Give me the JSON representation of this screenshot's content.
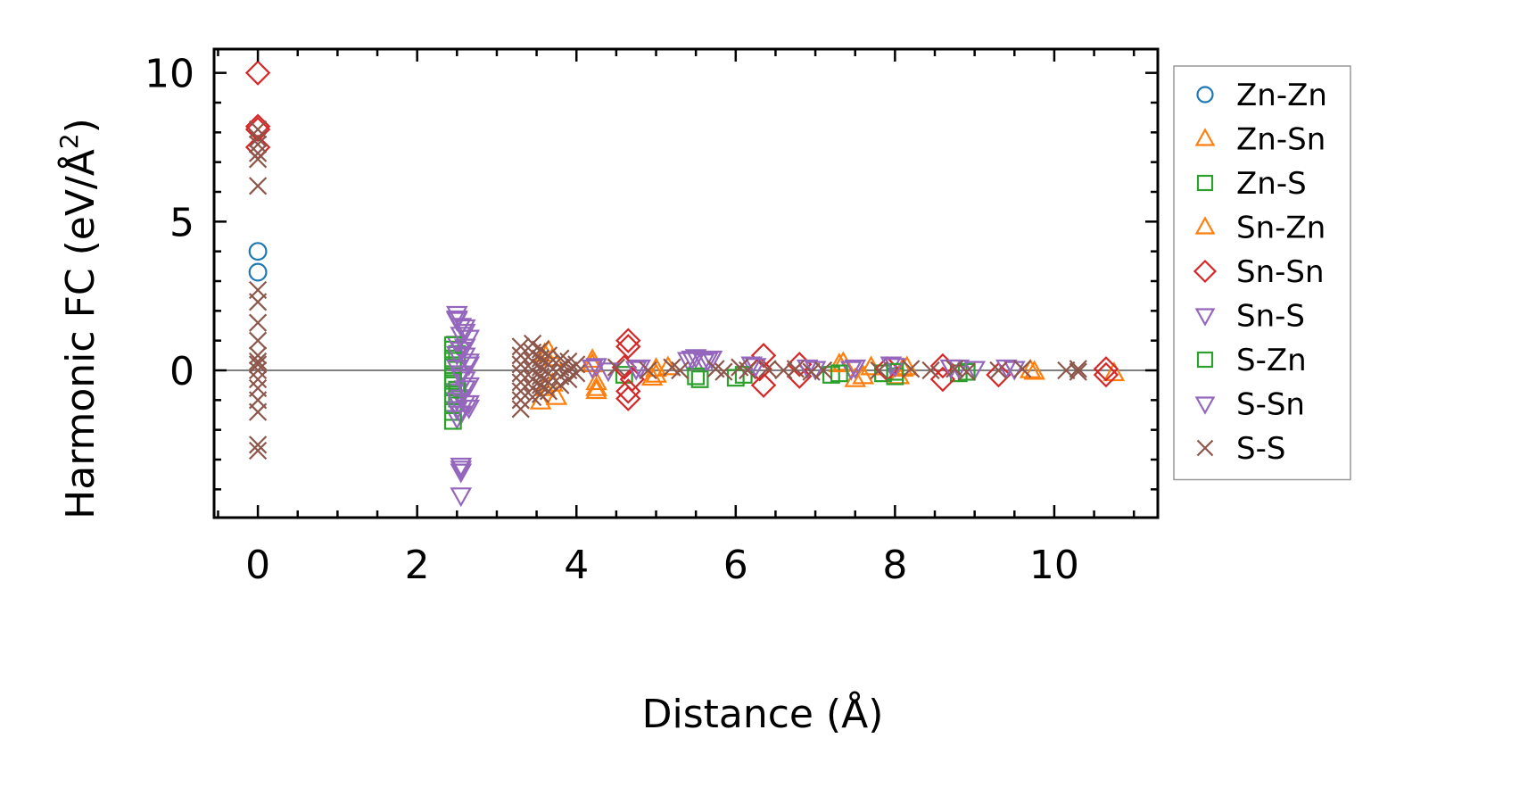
{
  "chart_data": {
    "type": "scatter",
    "xlabel": "Distance (Å)",
    "ylabel_main": "Harmonic FC (eV/Å",
    "ylabel_sup": "2",
    "ylabel_close": ")",
    "xlim": [
      -0.55,
      11.3
    ],
    "ylim": [
      -4.95,
      10.8
    ],
    "x_ticks": [
      0,
      2,
      4,
      6,
      8,
      10
    ],
    "x_tick_labels": [
      "0",
      "2",
      "4",
      "6",
      "8",
      "10"
    ],
    "y_ticks": [
      0,
      5,
      10
    ],
    "y_tick_labels": [
      "0",
      "5",
      "10"
    ],
    "x_minor_step": 0.5,
    "y_minor_step": 1,
    "zero_line": true,
    "grid": false,
    "legend_position": "outside-right",
    "series": [
      {
        "name": "Zn-Zn",
        "color": "#1f77b4",
        "marker": "circle",
        "points": [
          [
            0,
            4.0
          ],
          [
            0,
            3.3
          ]
        ]
      },
      {
        "name": "Zn-Sn",
        "color": "#ff7f0e",
        "marker": "triangle-up",
        "points": [
          [
            3.6,
            0.55
          ],
          [
            3.7,
            0.4
          ],
          [
            3.6,
            -0.6
          ],
          [
            3.55,
            -1.05
          ],
          [
            3.75,
            -0.9
          ],
          [
            4.25,
            -0.7
          ],
          [
            4.2,
            0.2
          ],
          [
            4.25,
            -0.4
          ],
          [
            4.95,
            -0.25
          ],
          [
            5.0,
            0.05
          ],
          [
            5.15,
            0.1
          ],
          [
            7.35,
            0.25
          ],
          [
            7.5,
            -0.3
          ],
          [
            7.7,
            0.1
          ],
          [
            8.05,
            -0.2
          ],
          [
            8.15,
            0.1
          ],
          [
            9.75,
            -0.05
          ],
          [
            10.75,
            -0.1
          ]
        ]
      },
      {
        "name": "Zn-S",
        "color": "#2ca02c",
        "marker": "square",
        "points": [
          [
            2.45,
            0.7
          ],
          [
            2.45,
            0.4
          ],
          [
            2.45,
            0.1
          ],
          [
            2.45,
            -0.2
          ],
          [
            2.45,
            -0.5
          ],
          [
            2.45,
            -0.8
          ],
          [
            2.45,
            -1.1
          ],
          [
            2.45,
            -1.4
          ],
          [
            2.5,
            0.55
          ],
          [
            2.5,
            -0.95
          ],
          [
            4.6,
            -0.15
          ],
          [
            5.55,
            -0.3
          ],
          [
            6.0,
            -0.25
          ],
          [
            7.2,
            -0.15
          ],
          [
            7.85,
            -0.1
          ],
          [
            8.0,
            -0.2
          ],
          [
            8.8,
            -0.1
          ]
        ]
      },
      {
        "name": "Sn-Zn",
        "color": "#ff7f0e",
        "marker": "triangle-up",
        "points": [
          [
            3.65,
            0.65
          ],
          [
            3.7,
            -0.45
          ],
          [
            4.2,
            0.35
          ],
          [
            4.25,
            -0.6
          ],
          [
            5.0,
            -0.15
          ],
          [
            7.3,
            0.2
          ],
          [
            7.6,
            -0.2
          ],
          [
            8.1,
            0.05
          ],
          [
            9.7,
            0.0
          ]
        ]
      },
      {
        "name": "Sn-Sn",
        "color": "#d62728",
        "marker": "diamond",
        "points": [
          [
            0,
            10.0
          ],
          [
            0,
            8.2
          ],
          [
            0,
            8.1
          ],
          [
            0,
            7.5
          ],
          [
            4.65,
            1.0
          ],
          [
            4.65,
            0.8
          ],
          [
            4.65,
            -0.7
          ],
          [
            4.65,
            -0.95
          ],
          [
            4.6,
            0.1
          ],
          [
            4.7,
            -0.3
          ],
          [
            6.35,
            0.5
          ],
          [
            6.35,
            -0.5
          ],
          [
            6.3,
            0.05
          ],
          [
            6.8,
            0.2
          ],
          [
            6.8,
            -0.2
          ],
          [
            7.9,
            0.05
          ],
          [
            8.6,
            -0.3
          ],
          [
            8.6,
            0.15
          ],
          [
            9.3,
            -0.15
          ],
          [
            10.65,
            0.05
          ],
          [
            10.65,
            -0.15
          ]
        ]
      },
      {
        "name": "Sn-S",
        "color": "#9467bd",
        "marker": "triangle-down",
        "points": [
          [
            2.5,
            1.9
          ],
          [
            2.5,
            1.75
          ],
          [
            2.55,
            1.5
          ],
          [
            2.6,
            1.3
          ],
          [
            2.65,
            1.1
          ],
          [
            2.5,
            0.9
          ],
          [
            2.55,
            0.7
          ],
          [
            2.6,
            0.5
          ],
          [
            2.65,
            0.3
          ],
          [
            2.5,
            0.1
          ],
          [
            2.55,
            -0.1
          ],
          [
            2.6,
            -0.3
          ],
          [
            2.65,
            -0.5
          ],
          [
            2.5,
            -0.7
          ],
          [
            2.55,
            -0.9
          ],
          [
            2.6,
            -1.1
          ],
          [
            2.65,
            -1.25
          ],
          [
            2.55,
            -1.45
          ],
          [
            2.5,
            -1.6
          ],
          [
            2.55,
            -3.3
          ],
          [
            2.55,
            -3.4
          ],
          [
            2.55,
            -4.2
          ],
          [
            4.2,
            0.1
          ],
          [
            4.4,
            0.0
          ],
          [
            4.75,
            0.05
          ],
          [
            5.4,
            0.35
          ],
          [
            5.5,
            0.45
          ],
          [
            5.6,
            0.3
          ],
          [
            5.7,
            0.4
          ],
          [
            6.2,
            0.2
          ],
          [
            6.9,
            0.1
          ],
          [
            7.45,
            0.05
          ],
          [
            7.95,
            0.2
          ],
          [
            8.7,
            0.1
          ],
          [
            9.0,
            0.05
          ],
          [
            9.5,
            0.05
          ]
        ]
      },
      {
        "name": "S-Zn",
        "color": "#2ca02c",
        "marker": "square",
        "points": [
          [
            2.45,
            0.85
          ],
          [
            2.45,
            -0.35
          ],
          [
            2.45,
            -1.7
          ],
          [
            2.5,
            -0.65
          ],
          [
            5.5,
            -0.2
          ],
          [
            6.1,
            -0.15
          ],
          [
            7.3,
            -0.1
          ],
          [
            8.0,
            -0.05
          ],
          [
            8.9,
            -0.05
          ]
        ]
      },
      {
        "name": "S-Sn",
        "color": "#9467bd",
        "marker": "triangle-down",
        "points": [
          [
            2.5,
            1.7
          ],
          [
            2.6,
            1.45
          ],
          [
            2.55,
            1.2
          ],
          [
            2.6,
            0.8
          ],
          [
            2.5,
            0.55
          ],
          [
            2.65,
            0.2
          ],
          [
            2.55,
            -0.2
          ],
          [
            2.6,
            -0.6
          ],
          [
            2.5,
            -1.0
          ],
          [
            2.65,
            -1.1
          ],
          [
            2.5,
            -1.3
          ],
          [
            2.55,
            -3.2
          ],
          [
            4.25,
            0.15
          ],
          [
            4.8,
            0.1
          ],
          [
            5.45,
            0.4
          ],
          [
            5.65,
            0.35
          ],
          [
            6.25,
            0.15
          ],
          [
            7.0,
            0.05
          ],
          [
            7.5,
            0.1
          ],
          [
            8.0,
            0.15
          ],
          [
            8.8,
            0.1
          ],
          [
            9.4,
            0.1
          ]
        ]
      },
      {
        "name": "S-S",
        "color": "#8c564b",
        "marker": "x",
        "points": [
          [
            0,
            8.1
          ],
          [
            0,
            7.8
          ],
          [
            0,
            7.6
          ],
          [
            0,
            7.3
          ],
          [
            0,
            7.1
          ],
          [
            0,
            6.2
          ],
          [
            0,
            2.7
          ],
          [
            0,
            2.3
          ],
          [
            0,
            1.6
          ],
          [
            0,
            1.0
          ],
          [
            0,
            0.5
          ],
          [
            0,
            0.3
          ],
          [
            0,
            0.2
          ],
          [
            0,
            0.0
          ],
          [
            0,
            -0.3
          ],
          [
            0,
            -0.6
          ],
          [
            0,
            -1.0
          ],
          [
            0,
            -1.4
          ],
          [
            0,
            -2.5
          ],
          [
            0,
            -2.7
          ],
          [
            3.3,
            0.8
          ],
          [
            3.3,
            0.5
          ],
          [
            3.3,
            0.2
          ],
          [
            3.3,
            -0.1
          ],
          [
            3.3,
            -0.4
          ],
          [
            3.3,
            -0.7
          ],
          [
            3.3,
            -1.0
          ],
          [
            3.3,
            -1.3
          ],
          [
            3.45,
            0.9
          ],
          [
            3.45,
            0.6
          ],
          [
            3.45,
            0.3
          ],
          [
            3.45,
            0.0
          ],
          [
            3.45,
            -0.3
          ],
          [
            3.45,
            -0.6
          ],
          [
            3.45,
            -0.9
          ],
          [
            3.55,
            0.7
          ],
          [
            3.55,
            0.4
          ],
          [
            3.55,
            0.1
          ],
          [
            3.55,
            -0.2
          ],
          [
            3.55,
            -0.5
          ],
          [
            3.55,
            -0.8
          ],
          [
            3.65,
            0.5
          ],
          [
            3.65,
            0.2
          ],
          [
            3.65,
            -0.1
          ],
          [
            3.65,
            -0.4
          ],
          [
            3.65,
            -0.7
          ],
          [
            3.8,
            0.4
          ],
          [
            3.8,
            0.1
          ],
          [
            3.8,
            -0.2
          ],
          [
            3.8,
            -0.5
          ],
          [
            3.9,
            0.3
          ],
          [
            3.9,
            0.0
          ],
          [
            3.9,
            -0.3
          ],
          [
            4.0,
            0.2
          ],
          [
            4.0,
            -0.1
          ],
          [
            4.5,
            0.1
          ],
          [
            4.9,
            0.0
          ],
          [
            5.2,
            0.1
          ],
          [
            5.3,
            0.0
          ],
          [
            5.75,
            0.05
          ],
          [
            5.85,
            -0.05
          ],
          [
            6.05,
            0.1
          ],
          [
            6.15,
            0.0
          ],
          [
            6.4,
            0.05
          ],
          [
            6.6,
            0.0
          ],
          [
            6.75,
            0.05
          ],
          [
            6.95,
            -0.05
          ],
          [
            7.1,
            0.0
          ],
          [
            7.8,
            0.0
          ],
          [
            8.2,
            0.05
          ],
          [
            8.45,
            0.0
          ],
          [
            8.75,
            0.05
          ],
          [
            8.9,
            -0.05
          ],
          [
            9.3,
            0.0
          ],
          [
            9.6,
            0.05
          ],
          [
            10.15,
            0.0
          ],
          [
            10.3,
            0.05
          ],
          [
            10.3,
            -0.05
          ]
        ]
      }
    ]
  }
}
